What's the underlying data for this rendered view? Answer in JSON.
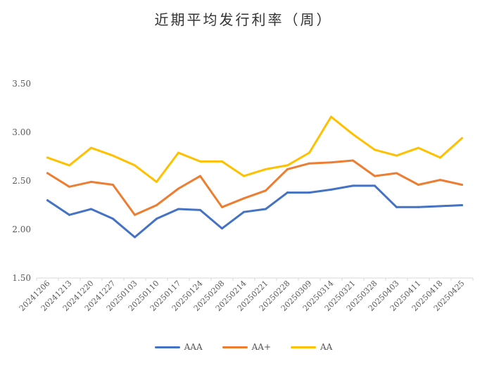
{
  "chart_data": {
    "type": "line",
    "title": "近期平均发行利率（周）",
    "xlabel": "",
    "ylabel": "",
    "ylim": [
      1.5,
      3.5
    ],
    "yticks": [
      "1.50",
      "2.00",
      "2.50",
      "3.00",
      "3.50"
    ],
    "grid": false,
    "legend_position": "bottom",
    "categories": [
      "20241206",
      "20241213",
      "20241220",
      "20241227",
      "20250103",
      "20250110",
      "20250117",
      "20250124",
      "20250208",
      "20250214",
      "20250221",
      "20250228",
      "20250309",
      "20250314",
      "20250321",
      "20250328",
      "20250403",
      "20250411",
      "20250418",
      "20250425"
    ],
    "series": [
      {
        "name": "AAA",
        "color": "#4472c4",
        "values": [
          2.3,
          2.15,
          2.21,
          2.11,
          1.92,
          2.11,
          2.21,
          2.2,
          2.01,
          2.18,
          2.21,
          2.38,
          2.38,
          2.41,
          2.45,
          2.45,
          2.23,
          2.23,
          2.24,
          2.25
        ]
      },
      {
        "name": "AA+",
        "color": "#ed7d31",
        "values": [
          2.58,
          2.44,
          2.49,
          2.46,
          2.15,
          2.25,
          2.42,
          2.55,
          2.23,
          2.32,
          2.4,
          2.62,
          2.68,
          2.69,
          2.71,
          2.55,
          2.58,
          2.46,
          2.51,
          2.46
        ]
      },
      {
        "name": "AA",
        "color": "#ffc000",
        "values": [
          2.74,
          2.66,
          2.84,
          2.76,
          2.66,
          2.49,
          2.79,
          2.7,
          2.7,
          2.55,
          2.62,
          2.66,
          2.79,
          3.16,
          2.98,
          2.82,
          2.76,
          2.84,
          2.74,
          2.94
        ]
      }
    ]
  }
}
